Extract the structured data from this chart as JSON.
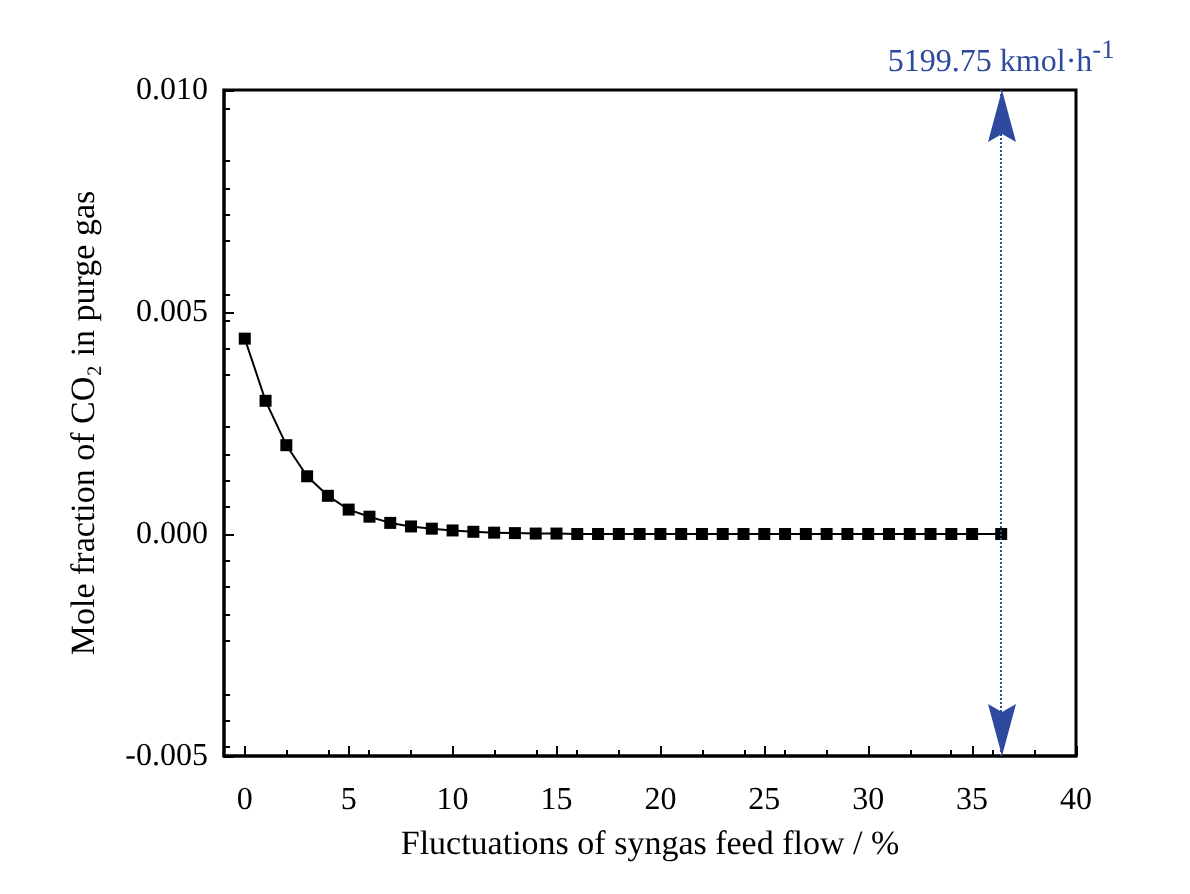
{
  "chart_data": {
    "type": "line",
    "xlabel": "Fluctuations of syngas feed flow / %",
    "ylabel": "Mole fraction of CO₂ in purge gas",
    "x": [
      0,
      1,
      2,
      3,
      4,
      5,
      6,
      7,
      8,
      9,
      10,
      11,
      12,
      13,
      14,
      15,
      16,
      17,
      18,
      19,
      20,
      21,
      22,
      23,
      24,
      25,
      26,
      27,
      28,
      29,
      30,
      31,
      32,
      33,
      34,
      35,
      36.4
    ],
    "series": [
      {
        "color": "#000000",
        "values": [
          0.0044,
          0.003,
          0.002,
          0.0013,
          0.00086,
          0.00055,
          0.00039,
          0.00025,
          0.00017,
          0.00012,
          8e-05,
          5e-05,
          3e-05,
          2e-05,
          1e-05,
          1e-05,
          0,
          0,
          0,
          0,
          0,
          0,
          0,
          0,
          0,
          0,
          0,
          0,
          0,
          0,
          0,
          0,
          0,
          0,
          0,
          0,
          0
        ]
      }
    ],
    "xlim": [
      -1,
      40
    ],
    "xticks": [
      0,
      5,
      10,
      15,
      20,
      25,
      30,
      35,
      40
    ],
    "ylim": [
      -0.005,
      0.01
    ],
    "yticks": [
      {
        "value": -0.005,
        "label": "-0.005"
      },
      {
        "value": 0,
        "label": "0.000"
      },
      {
        "value": 0.005,
        "label": "0.005"
      },
      {
        "value": 0.01,
        "label": "0.010"
      }
    ],
    "ref_lines": [
      {
        "axis": "x",
        "value": 36.4,
        "label": "5199.75 kmol·h$^{-1}$",
        "color": "#2e4a9e",
        "line_style": "dotted"
      }
    ],
    "marker": "square",
    "line_style": "solid"
  }
}
